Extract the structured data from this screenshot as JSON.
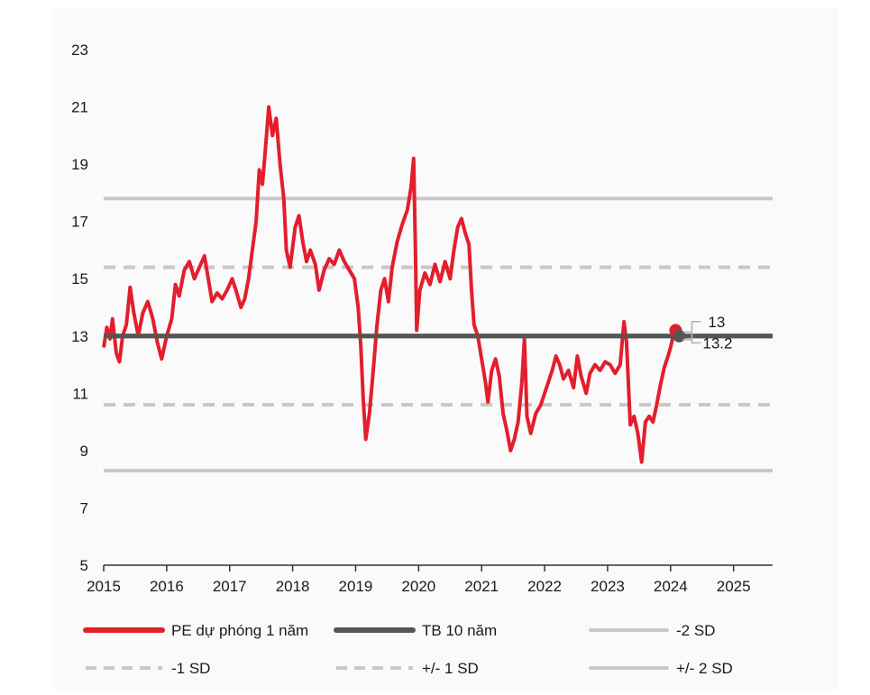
{
  "chart_data": {
    "type": "line",
    "title": "",
    "xlabel": "",
    "ylabel": "",
    "ylim": [
      5,
      23
    ],
    "xlim": [
      2015,
      2025.62
    ],
    "y_ticks": [
      "5",
      "7",
      "9",
      "11",
      "13",
      "15",
      "17",
      "19",
      "21",
      "23"
    ],
    "x_ticks": [
      "2015",
      "2016",
      "2017",
      "2018",
      "2019",
      "2020",
      "2021",
      "2022",
      "2023",
      "2024",
      "2025"
    ],
    "series": [
      {
        "name": "PE dự phóng 1 năm",
        "color": "#e31e2d",
        "style": "solid-thick",
        "points": [
          [
            2015.0,
            12.6
          ],
          [
            2015.05,
            13.3
          ],
          [
            2015.1,
            12.9
          ],
          [
            2015.14,
            13.6
          ],
          [
            2015.2,
            12.4
          ],
          [
            2015.25,
            12.1
          ],
          [
            2015.3,
            13.0
          ],
          [
            2015.36,
            13.4
          ],
          [
            2015.42,
            14.7
          ],
          [
            2015.48,
            13.8
          ],
          [
            2015.55,
            13.0
          ],
          [
            2015.62,
            13.8
          ],
          [
            2015.7,
            14.2
          ],
          [
            2015.78,
            13.6
          ],
          [
            2015.85,
            12.8
          ],
          [
            2015.92,
            12.2
          ],
          [
            2016.0,
            13.0
          ],
          [
            2016.08,
            13.6
          ],
          [
            2016.14,
            14.8
          ],
          [
            2016.2,
            14.4
          ],
          [
            2016.28,
            15.3
          ],
          [
            2016.36,
            15.6
          ],
          [
            2016.44,
            15.0
          ],
          [
            2016.52,
            15.4
          ],
          [
            2016.6,
            15.8
          ],
          [
            2016.66,
            15.0
          ],
          [
            2016.72,
            14.2
          ],
          [
            2016.8,
            14.5
          ],
          [
            2016.88,
            14.3
          ],
          [
            2016.96,
            14.6
          ],
          [
            2017.04,
            15.0
          ],
          [
            2017.1,
            14.6
          ],
          [
            2017.18,
            14.0
          ],
          [
            2017.24,
            14.3
          ],
          [
            2017.3,
            15.0
          ],
          [
            2017.36,
            16.0
          ],
          [
            2017.42,
            17.0
          ],
          [
            2017.47,
            18.8
          ],
          [
            2017.52,
            18.3
          ],
          [
            2017.57,
            19.6
          ],
          [
            2017.62,
            21.0
          ],
          [
            2017.68,
            20.0
          ],
          [
            2017.74,
            20.6
          ],
          [
            2017.8,
            19.0
          ],
          [
            2017.86,
            17.8
          ],
          [
            2017.9,
            16.0
          ],
          [
            2017.96,
            15.4
          ],
          [
            2018.04,
            16.8
          ],
          [
            2018.1,
            17.2
          ],
          [
            2018.16,
            16.3
          ],
          [
            2018.22,
            15.6
          ],
          [
            2018.28,
            16.0
          ],
          [
            2018.36,
            15.5
          ],
          [
            2018.42,
            14.6
          ],
          [
            2018.5,
            15.3
          ],
          [
            2018.58,
            15.7
          ],
          [
            2018.66,
            15.5
          ],
          [
            2018.74,
            16.0
          ],
          [
            2018.82,
            15.6
          ],
          [
            2018.9,
            15.3
          ],
          [
            2018.98,
            15.0
          ],
          [
            2019.04,
            14.0
          ],
          [
            2019.08,
            12.7
          ],
          [
            2019.12,
            10.8
          ],
          [
            2019.16,
            9.4
          ],
          [
            2019.22,
            10.3
          ],
          [
            2019.28,
            11.8
          ],
          [
            2019.34,
            13.4
          ],
          [
            2019.4,
            14.6
          ],
          [
            2019.46,
            15.0
          ],
          [
            2019.52,
            14.2
          ],
          [
            2019.58,
            15.4
          ],
          [
            2019.66,
            16.3
          ],
          [
            2019.74,
            16.9
          ],
          [
            2019.82,
            17.4
          ],
          [
            2019.88,
            18.2
          ],
          [
            2019.92,
            19.2
          ],
          [
            2019.95,
            16.0
          ],
          [
            2019.97,
            13.2
          ],
          [
            2020.02,
            14.6
          ],
          [
            2020.1,
            15.2
          ],
          [
            2020.18,
            14.8
          ],
          [
            2020.26,
            15.5
          ],
          [
            2020.34,
            14.9
          ],
          [
            2020.42,
            15.6
          ],
          [
            2020.5,
            15.0
          ],
          [
            2020.56,
            16.0
          ],
          [
            2020.62,
            16.8
          ],
          [
            2020.68,
            17.1
          ],
          [
            2020.74,
            16.6
          ],
          [
            2020.8,
            16.2
          ],
          [
            2020.84,
            14.6
          ],
          [
            2020.88,
            13.4
          ],
          [
            2020.94,
            13.0
          ],
          [
            2021.0,
            12.2
          ],
          [
            2021.06,
            11.4
          ],
          [
            2021.1,
            10.7
          ],
          [
            2021.16,
            11.8
          ],
          [
            2021.22,
            12.2
          ],
          [
            2021.28,
            11.6
          ],
          [
            2021.34,
            10.3
          ],
          [
            2021.4,
            9.7
          ],
          [
            2021.46,
            9.0
          ],
          [
            2021.52,
            9.4
          ],
          [
            2021.58,
            10.0
          ],
          [
            2021.64,
            11.4
          ],
          [
            2021.68,
            12.9
          ],
          [
            2021.72,
            10.2
          ],
          [
            2021.78,
            9.6
          ],
          [
            2021.86,
            10.3
          ],
          [
            2021.94,
            10.6
          ],
          [
            2022.0,
            11.0
          ],
          [
            2022.06,
            11.4
          ],
          [
            2022.12,
            11.8
          ],
          [
            2022.18,
            12.3
          ],
          [
            2022.24,
            12.0
          ],
          [
            2022.3,
            11.5
          ],
          [
            2022.38,
            11.8
          ],
          [
            2022.46,
            11.2
          ],
          [
            2022.52,
            12.3
          ],
          [
            2022.58,
            11.6
          ],
          [
            2022.66,
            11.0
          ],
          [
            2022.72,
            11.7
          ],
          [
            2022.8,
            12.0
          ],
          [
            2022.88,
            11.8
          ],
          [
            2022.96,
            12.1
          ],
          [
            2023.04,
            12.0
          ],
          [
            2023.12,
            11.7
          ],
          [
            2023.2,
            12.0
          ],
          [
            2023.26,
            13.5
          ],
          [
            2023.3,
            12.8
          ],
          [
            2023.36,
            9.9
          ],
          [
            2023.42,
            10.2
          ],
          [
            2023.48,
            9.6
          ],
          [
            2023.54,
            8.6
          ],
          [
            2023.6,
            10.0
          ],
          [
            2023.66,
            10.2
          ],
          [
            2023.72,
            10.0
          ],
          [
            2023.78,
            10.6
          ],
          [
            2023.84,
            11.3
          ],
          [
            2023.9,
            11.9
          ],
          [
            2023.96,
            12.3
          ],
          [
            2024.0,
            12.6
          ],
          [
            2024.04,
            13.0
          ],
          [
            2024.08,
            13.2
          ]
        ]
      },
      {
        "name": "TB 10 năm",
        "color": "#555555",
        "style": "solid-thick",
        "value": 13.0
      },
      {
        "name": "-2 SD",
        "color": "#c8c8c8",
        "style": "solid",
        "value": 8.3
      },
      {
        "name": "-1 SD",
        "color": "#c8c8c8",
        "style": "dashed",
        "value": 10.6
      },
      {
        "name": "+/- 1 SD",
        "color": "#c8c8c8",
        "style": "dashed",
        "value": 15.4
      },
      {
        "name": "+/- 2 SD",
        "color": "#c8c8c8",
        "style": "solid",
        "value": 17.8
      }
    ],
    "callouts": [
      {
        "label": "13",
        "value": 13.0
      },
      {
        "label": "13.2",
        "value": 13.2
      }
    ],
    "legend_position": "bottom",
    "grid": false
  }
}
